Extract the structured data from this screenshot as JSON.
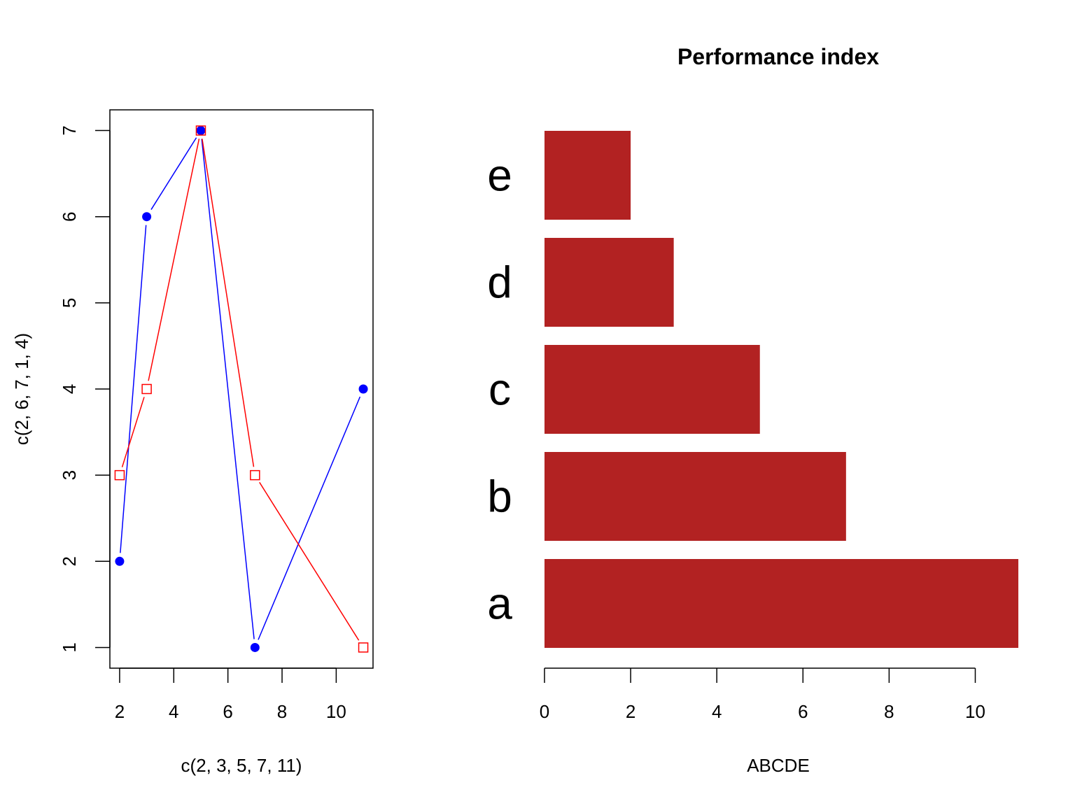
{
  "chart_data": [
    {
      "type": "line",
      "xlabel": "c(2, 3, 5, 7, 11)",
      "ylabel": "c(2, 6, 7, 1, 4)",
      "x": [
        2,
        3,
        5,
        7,
        11
      ],
      "xlim": [
        1.64,
        11.36
      ],
      "ylim": [
        0.76,
        7.24
      ],
      "xticks": [
        2,
        4,
        6,
        8,
        10
      ],
      "yticks": [
        1,
        2,
        3,
        4,
        5,
        6,
        7
      ],
      "series": [
        {
          "values": [
            2,
            6,
            7,
            1,
            4
          ],
          "color": "#0000ff",
          "marker": "filled-circle"
        },
        {
          "values": [
            3,
            4,
            7,
            3,
            1
          ],
          "color": "#ff0000",
          "marker": "open-square"
        }
      ]
    },
    {
      "type": "bar",
      "orientation": "horizontal",
      "title": "Performance index",
      "xlabel": "ABCDE",
      "categories": [
        "a",
        "b",
        "c",
        "d",
        "e"
      ],
      "values": [
        11,
        7,
        5,
        3,
        2
      ],
      "color": "#b22222",
      "xticks": [
        0,
        2,
        4,
        6,
        8,
        10
      ]
    }
  ]
}
